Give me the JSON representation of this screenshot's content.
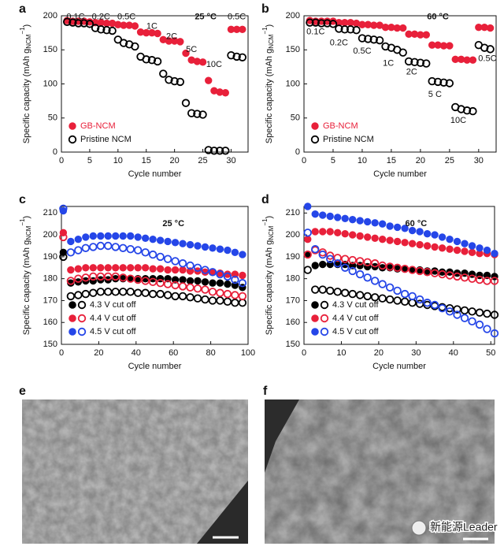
{
  "chart_data": [
    {
      "type": "scatter",
      "panel": "a",
      "xlabel": "Cycle number",
      "ylabel": {
        "text": "Specific capacity (mAh g",
        "sub": "NCM",
        "sup": "−1",
        "close": ")"
      },
      "xlim": [
        0,
        33
      ],
      "xticks": [
        0,
        5,
        10,
        15,
        20,
        25,
        30
      ],
      "ylim": [
        0,
        200
      ],
      "yticks": [
        0,
        50,
        100,
        150,
        200
      ],
      "legend": "lower left",
      "x": [
        1,
        2,
        3,
        4,
        5,
        6,
        7,
        8,
        9,
        10,
        11,
        12,
        13,
        14,
        15,
        16,
        17,
        18,
        19,
        20,
        21,
        22,
        23,
        24,
        25,
        26,
        27,
        28,
        29,
        30,
        31,
        32
      ],
      "series": [
        {
          "name": "GB-NCM",
          "color": "#e8203a",
          "marker": "filled",
          "values": [
            193,
            192,
            192,
            192,
            191,
            190,
            190,
            189,
            189,
            187,
            186,
            186,
            185,
            176,
            175,
            175,
            174,
            165,
            163,
            163,
            162,
            145,
            135,
            133,
            132,
            105,
            90,
            88,
            87,
            180,
            180,
            180
          ]
        },
        {
          "name": "Pristine NCM",
          "color": "#000000",
          "marker": "open",
          "values": [
            191,
            190,
            189,
            189,
            188,
            182,
            180,
            179,
            178,
            165,
            160,
            158,
            155,
            140,
            136,
            135,
            133,
            115,
            106,
            104,
            103,
            72,
            57,
            56,
            55,
            3,
            2,
            2,
            2,
            142,
            140,
            139
          ]
        }
      ],
      "annotations": [
        {
          "text": "0.1C",
          "x": 2.5,
          "y": 198
        },
        {
          "text": "0.2C",
          "x": 7,
          "y": 198
        },
        {
          "text": "0.5C",
          "x": 11.5,
          "y": 198
        },
        {
          "text": "1C",
          "x": 16,
          "y": 184
        },
        {
          "text": "2C",
          "x": 19.5,
          "y": 169
        },
        {
          "text": "5C",
          "x": 23,
          "y": 150
        },
        {
          "text": "10C",
          "x": 27,
          "y": 128
        },
        {
          "text": "0.5C",
          "x": 31,
          "y": 198
        },
        {
          "text": "25 °C",
          "x": 25.5,
          "y": 198,
          "bold": true
        }
      ]
    },
    {
      "type": "scatter",
      "panel": "b",
      "xlabel": "Cycle number",
      "ylabel": {
        "text": "Specific capacity (mAh g",
        "sub": "NCM",
        "sup": "−1",
        "close": ")"
      },
      "xlim": [
        0,
        33
      ],
      "xticks": [
        0,
        5,
        10,
        15,
        20,
        25,
        30
      ],
      "ylim": [
        0,
        200
      ],
      "yticks": [
        0,
        50,
        100,
        150,
        200
      ],
      "legend": "lower left",
      "x": [
        1,
        2,
        3,
        4,
        5,
        6,
        7,
        8,
        9,
        10,
        11,
        12,
        13,
        14,
        15,
        16,
        17,
        18,
        19,
        20,
        21,
        22,
        23,
        24,
        25,
        26,
        27,
        28,
        29,
        30,
        31,
        32
      ],
      "series": [
        {
          "name": "GB-NCM",
          "color": "#e8203a",
          "marker": "filled",
          "values": [
            193,
            192,
            192,
            192,
            192,
            190,
            190,
            190,
            189,
            187,
            187,
            186,
            186,
            183,
            183,
            182,
            182,
            173,
            173,
            172,
            172,
            157,
            157,
            156,
            156,
            136,
            136,
            135,
            135,
            183,
            183,
            182
          ]
        },
        {
          "name": "Pristine NCM",
          "color": "#000000",
          "marker": "open",
          "values": [
            190,
            190,
            189,
            189,
            188,
            181,
            180,
            180,
            179,
            167,
            166,
            165,
            164,
            155,
            153,
            150,
            146,
            133,
            132,
            131,
            130,
            104,
            103,
            102,
            101,
            66,
            63,
            61,
            60,
            157,
            153,
            151
          ]
        }
      ],
      "annotations": [
        {
          "text": "0.1C",
          "x": 2,
          "y": 176
        },
        {
          "text": "0.2C",
          "x": 6,
          "y": 160
        },
        {
          "text": "0.5C",
          "x": 10,
          "y": 148
        },
        {
          "text": "1C",
          "x": 14.5,
          "y": 130
        },
        {
          "text": "2C",
          "x": 18.5,
          "y": 117
        },
        {
          "text": "5 C",
          "x": 22.5,
          "y": 84
        },
        {
          "text": "10C",
          "x": 26.5,
          "y": 46
        },
        {
          "text": "0.5C",
          "x": 31.5,
          "y": 137
        },
        {
          "text": "60 °C",
          "x": 23,
          "y": 198,
          "bold": true
        }
      ]
    },
    {
      "type": "scatter",
      "panel": "c",
      "xlabel": "Cycle number",
      "ylabel": {
        "text": "Specific capacity (mAh g",
        "sub": "NCM",
        "sup": "−1",
        "close": ")"
      },
      "xlim": [
        0,
        100
      ],
      "xticks": [
        0,
        20,
        40,
        60,
        80,
        100
      ],
      "ylim": [
        150,
        213
      ],
      "yticks": [
        150,
        160,
        170,
        180,
        190,
        200,
        210
      ],
      "legend": "lower left",
      "x": [
        1,
        5,
        9,
        13,
        17,
        21,
        25,
        29,
        33,
        37,
        41,
        45,
        49,
        53,
        57,
        61,
        65,
        69,
        73,
        77,
        81,
        85,
        89,
        93,
        97
      ],
      "series": [
        {
          "name": "4.3 V cut off",
          "color": "#000000",
          "values": [
            192,
            178,
            178.5,
            179,
            179,
            179.5,
            179.5,
            180,
            180,
            180,
            180,
            180,
            180,
            180,
            180,
            179.5,
            179.5,
            179,
            179,
            178.5,
            178,
            178,
            177.5,
            177,
            176
          ],
          "open_values": [
            190,
            172,
            172.5,
            173,
            173.5,
            174,
            174,
            174,
            174,
            174,
            173.5,
            173.5,
            173,
            173,
            172.5,
            172,
            172,
            171.5,
            171,
            170.5,
            170,
            170,
            169.5,
            169,
            169
          ]
        },
        {
          "name": "4.4 V cut off",
          "color": "#e8203a",
          "values": [
            201,
            184,
            184.5,
            185,
            185,
            185,
            185,
            185,
            185,
            185,
            185,
            185,
            184.5,
            184.5,
            184,
            184,
            184,
            183.5,
            183.5,
            183,
            183,
            182.5,
            182,
            182,
            181.5
          ],
          "open_values": [
            199,
            179,
            180,
            180.5,
            181,
            181,
            181,
            181,
            180.5,
            180,
            179.5,
            179,
            178.5,
            178,
            177.5,
            177,
            176.5,
            176,
            175.5,
            175,
            174,
            173.5,
            173,
            172.5,
            172
          ]
        },
        {
          "name": "4.5 V cut off",
          "color": "#2546e8",
          "values": [
            211,
            197,
            198,
            199,
            199.5,
            199.5,
            199.5,
            199.5,
            199.5,
            199.5,
            199,
            198.5,
            198,
            197.5,
            197,
            196.5,
            196,
            195.5,
            195,
            194.5,
            194,
            193.5,
            193,
            192,
            191
          ],
          "open_values": [
            212,
            192,
            193,
            194,
            194.5,
            195,
            195,
            194.5,
            194,
            193.5,
            193,
            192,
            191,
            190,
            189,
            188,
            187,
            186,
            185,
            184,
            183,
            182,
            181,
            179.5,
            178
          ]
        }
      ],
      "annotations": [
        {
          "text": "25 °C",
          "x": 60,
          "y": 205,
          "bold": true
        }
      ]
    },
    {
      "type": "scatter",
      "panel": "d",
      "xlabel": "Cycle number",
      "ylabel": {
        "text": "Specific capacity (mAh g",
        "sub": "NCM",
        "sup": "−1",
        "close": ")"
      },
      "xlim": [
        0,
        51
      ],
      "xticks": [
        0,
        10,
        20,
        30,
        40,
        50
      ],
      "ylim": [
        150,
        213
      ],
      "yticks": [
        150,
        160,
        170,
        180,
        190,
        200,
        210
      ],
      "legend": "lower left",
      "x": [
        1,
        3,
        5,
        7,
        9,
        11,
        13,
        15,
        17,
        19,
        21,
        23,
        25,
        27,
        29,
        31,
        33,
        35,
        37,
        39,
        41,
        43,
        45,
        47,
        49,
        51
      ],
      "series": [
        {
          "name": "4.3 V cut off",
          "color": "#000000",
          "values": [
            191,
            186,
            186.5,
            186.5,
            186.5,
            186.5,
            186,
            186,
            185.5,
            185.5,
            185,
            185,
            184.5,
            184.5,
            184,
            184,
            183.5,
            183.5,
            183,
            183,
            182.5,
            182.5,
            182,
            181.5,
            181.5,
            181
          ],
          "open_values": [
            184,
            175,
            175,
            174.5,
            174,
            173.5,
            173,
            172.5,
            172,
            171.5,
            171,
            170.5,
            170,
            169.5,
            169,
            168.5,
            168,
            167.5,
            167,
            166.5,
            166,
            165.5,
            165,
            164.5,
            164,
            163.5
          ]
        },
        {
          "name": "4.4 V cut off",
          "color": "#e8203a",
          "values": [
            198,
            201.5,
            201.5,
            201.5,
            201,
            200.5,
            200,
            199.5,
            199,
            198.5,
            198,
            197.5,
            197,
            196.5,
            196,
            195.5,
            195,
            194.5,
            194,
            193.5,
            193,
            192.5,
            192,
            191.5,
            191.5,
            191
          ],
          "open_values": [
            191,
            193,
            192,
            190.5,
            189.5,
            189,
            188.5,
            188,
            187.5,
            187,
            186,
            185.5,
            185,
            184.5,
            184,
            183.5,
            183,
            182.5,
            182,
            181.5,
            181,
            180.5,
            180,
            179.5,
            179,
            179
          ]
        },
        {
          "name": "4.5 V cut off",
          "color": "#2546e8",
          "values": [
            213,
            209.5,
            209,
            208.5,
            208,
            207.5,
            207,
            206.5,
            206,
            205.5,
            205,
            204,
            203.5,
            203,
            202,
            201.5,
            200.5,
            200,
            199,
            198,
            197,
            196,
            195,
            194,
            193,
            191.5
          ],
          "open_values": [
            201,
            193.5,
            191,
            189,
            187,
            185,
            183.5,
            182,
            180.5,
            179,
            177.5,
            176,
            174.5,
            173,
            172,
            170.5,
            169,
            168,
            166.5,
            165,
            163.5,
            162,
            160.5,
            159,
            157,
            155
          ]
        }
      ],
      "annotations": [
        {
          "text": "60 °C",
          "x": 30,
          "y": 205,
          "bold": true
        }
      ]
    }
  ],
  "images": [
    {
      "label": "e"
    },
    {
      "label": "f"
    }
  ],
  "watermark": "新能源Leader"
}
